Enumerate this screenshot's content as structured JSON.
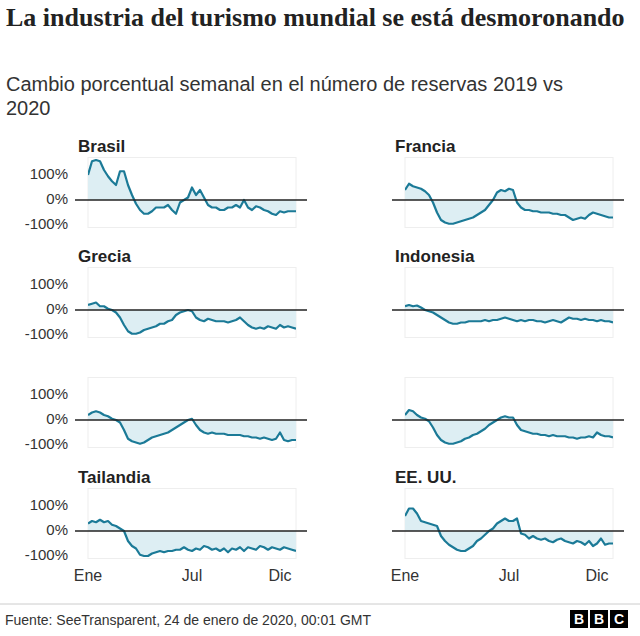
{
  "title": "La industria del turismo mundial se está desmoronando",
  "subtitle": "Cambio porcentual semanal en el número de reservas 2019 vs 2020",
  "source": "Fuente: SeeTransparent, 24 de enero de 2020, 00:01 GMT",
  "logo": "BBC",
  "chart_data": [
    {
      "type": "line",
      "title": "Brasil",
      "x": [
        1,
        2,
        3,
        4,
        5,
        6,
        7,
        8,
        9,
        10,
        11,
        12,
        13,
        14,
        15,
        16,
        17,
        18,
        19,
        20,
        21,
        22,
        23,
        24,
        25,
        26,
        27,
        28,
        29,
        30,
        31,
        32,
        33,
        34,
        35,
        36,
        37,
        38,
        39,
        40,
        41,
        42,
        43,
        44,
        45,
        46,
        47,
        48,
        49,
        50,
        51,
        52,
        53
      ],
      "series": [
        {
          "color": "#1b7a97",
          "values": [
            100,
            155,
            160,
            155,
            120,
            95,
            75,
            60,
            115,
            115,
            60,
            20,
            -15,
            -40,
            -55,
            -55,
            -45,
            -30,
            -30,
            -30,
            -20,
            -40,
            -55,
            -10,
            0,
            10,
            50,
            20,
            40,
            10,
            -20,
            -30,
            -30,
            -40,
            -40,
            -30,
            -30,
            -20,
            -30,
            0,
            -30,
            -40,
            -25,
            -30,
            -40,
            -45,
            -55,
            -60,
            -45,
            -50,
            -45,
            -45,
            -45
          ]
        }
      ],
      "xlim": [
        1,
        53
      ],
      "xticks": [
        {
          "value": 1,
          "label": "Ene"
        },
        {
          "value": 27,
          "label": "Jul"
        },
        {
          "value": 49,
          "label": "Dic"
        }
      ],
      "ylim": [
        -110,
        170
      ],
      "yticks": [
        {
          "value": -100,
          "label": "-100%"
        },
        {
          "value": 0,
          "label": "0%"
        },
        {
          "value": 100,
          "label": "100%"
        }
      ],
      "grid": false,
      "tick_labels": "y"
    },
    {
      "type": "line",
      "title": "Francia",
      "x": [
        1,
        2,
        3,
        4,
        5,
        6,
        7,
        8,
        9,
        10,
        11,
        12,
        13,
        14,
        15,
        16,
        17,
        18,
        19,
        20,
        21,
        22,
        23,
        24,
        25,
        26,
        27,
        28,
        29,
        30,
        31,
        32,
        33,
        34,
        35,
        36,
        37,
        38,
        39,
        40,
        41,
        42,
        43,
        44,
        45,
        46,
        47,
        48,
        49,
        50,
        51,
        52,
        53
      ],
      "series": [
        {
          "color": "#1b7a97",
          "values": [
            40,
            65,
            55,
            50,
            45,
            35,
            20,
            -10,
            -50,
            -80,
            -90,
            -95,
            -95,
            -90,
            -85,
            -80,
            -75,
            -70,
            -60,
            -50,
            -40,
            -20,
            0,
            30,
            40,
            35,
            45,
            40,
            -10,
            -30,
            -40,
            -40,
            -45,
            -45,
            -50,
            -50,
            -50,
            -55,
            -55,
            -60,
            -60,
            -70,
            -80,
            -75,
            -70,
            -75,
            -60,
            -50,
            -55,
            -60,
            -65,
            -70,
            -70
          ]
        }
      ],
      "xlim": [
        1,
        53
      ],
      "xticks": [
        {
          "value": 1,
          "label": "Ene"
        },
        {
          "value": 27,
          "label": "Jul"
        },
        {
          "value": 49,
          "label": "Dic"
        }
      ],
      "ylim": [
        -110,
        170
      ],
      "yticks": [
        {
          "value": -100,
          "label": "-100%"
        },
        {
          "value": 0,
          "label": "0%"
        },
        {
          "value": 100,
          "label": "100%"
        }
      ],
      "grid": false,
      "tick_labels": false
    },
    {
      "type": "line",
      "title": "Grecia",
      "x": [
        1,
        2,
        3,
        4,
        5,
        6,
        7,
        8,
        9,
        10,
        11,
        12,
        13,
        14,
        15,
        16,
        17,
        18,
        19,
        20,
        21,
        22,
        23,
        24,
        25,
        26,
        27,
        28,
        29,
        30,
        31,
        32,
        33,
        34,
        35,
        36,
        37,
        38,
        39,
        40,
        41,
        42,
        43,
        44,
        45,
        46,
        47,
        48,
        49,
        50,
        51,
        52,
        53
      ],
      "series": [
        {
          "color": "#1b7a97",
          "values": [
            20,
            25,
            30,
            15,
            15,
            5,
            0,
            -10,
            -30,
            -60,
            -85,
            -95,
            -95,
            -90,
            -80,
            -75,
            -70,
            -65,
            -55,
            -55,
            -45,
            -40,
            -20,
            -10,
            -5,
            0,
            -5,
            -30,
            -40,
            -45,
            -35,
            -40,
            -45,
            -45,
            -45,
            -50,
            -45,
            -40,
            -30,
            -45,
            -60,
            -70,
            -75,
            -70,
            -75,
            -65,
            -70,
            -75,
            -60,
            -70,
            -65,
            -70,
            -75
          ]
        }
      ],
      "xlim": [
        1,
        53
      ],
      "xticks": [
        {
          "value": 1,
          "label": "Ene"
        },
        {
          "value": 27,
          "label": "Jul"
        },
        {
          "value": 49,
          "label": "Dic"
        }
      ],
      "ylim": [
        -110,
        170
      ],
      "yticks": [
        {
          "value": -100,
          "label": "-100%"
        },
        {
          "value": 0,
          "label": "0%"
        },
        {
          "value": 100,
          "label": "100%"
        }
      ],
      "grid": false,
      "tick_labels": "y"
    },
    {
      "type": "line",
      "title": "Indonesia",
      "x": [
        1,
        2,
        3,
        4,
        5,
        6,
        7,
        8,
        9,
        10,
        11,
        12,
        13,
        14,
        15,
        16,
        17,
        18,
        19,
        20,
        21,
        22,
        23,
        24,
        25,
        26,
        27,
        28,
        29,
        30,
        31,
        32,
        33,
        34,
        35,
        36,
        37,
        38,
        39,
        40,
        41,
        42,
        43,
        44,
        45,
        46,
        47,
        48,
        49,
        50,
        51,
        52,
        53
      ],
      "series": [
        {
          "color": "#1b7a97",
          "values": [
            15,
            20,
            15,
            18,
            10,
            0,
            -5,
            -10,
            -20,
            -30,
            -40,
            -50,
            -55,
            -55,
            -50,
            -50,
            -45,
            -45,
            -45,
            -45,
            -40,
            -45,
            -40,
            -40,
            -35,
            -30,
            -35,
            -40,
            -45,
            -40,
            -45,
            -40,
            -40,
            -45,
            -45,
            -50,
            -45,
            -40,
            -45,
            -50,
            -40,
            -30,
            -35,
            -35,
            -40,
            -35,
            -40,
            -40,
            -45,
            -40,
            -45,
            -45,
            -50
          ]
        }
      ],
      "xlim": [
        1,
        53
      ],
      "xticks": [
        {
          "value": 1,
          "label": "Ene"
        },
        {
          "value": 27,
          "label": "Jul"
        },
        {
          "value": 49,
          "label": "Dic"
        }
      ],
      "ylim": [
        -110,
        170
      ],
      "yticks": [
        {
          "value": -100,
          "label": "-100%"
        },
        {
          "value": 0,
          "label": "0%"
        },
        {
          "value": 100,
          "label": "100%"
        }
      ],
      "grid": false,
      "tick_labels": false
    },
    {
      "type": "line",
      "x": [
        1,
        2,
        3,
        4,
        5,
        6,
        7,
        8,
        9,
        10,
        11,
        12,
        13,
        14,
        15,
        16,
        17,
        18,
        19,
        20,
        21,
        22,
        23,
        24,
        25,
        26,
        27,
        28,
        29,
        30,
        31,
        32,
        33,
        34,
        35,
        36,
        37,
        38,
        39,
        40,
        41,
        42,
        43,
        44,
        45,
        46,
        47,
        48,
        49,
        50,
        51,
        52,
        53
      ],
      "series": [
        {
          "color": "#1b7a97",
          "values": [
            20,
            30,
            35,
            30,
            20,
            15,
            5,
            0,
            -10,
            -40,
            -75,
            -85,
            -90,
            -95,
            -90,
            -80,
            -70,
            -65,
            -60,
            -55,
            -50,
            -40,
            -30,
            -20,
            -10,
            0,
            5,
            -20,
            -40,
            -50,
            -55,
            -50,
            -55,
            -55,
            -55,
            -60,
            -60,
            -60,
            -60,
            -65,
            -65,
            -70,
            -70,
            -75,
            -70,
            -75,
            -80,
            -75,
            -50,
            -80,
            -85,
            -80,
            -80
          ]
        }
      ],
      "xlim": [
        1,
        53
      ],
      "xticks": [
        {
          "value": 1,
          "label": "Ene"
        },
        {
          "value": 27,
          "label": "Jul"
        },
        {
          "value": 49,
          "label": "Dic"
        }
      ],
      "ylim": [
        -110,
        170
      ],
      "yticks": [
        {
          "value": -100,
          "label": "-100%"
        },
        {
          "value": 0,
          "label": "0%"
        },
        {
          "value": 100,
          "label": "100%"
        }
      ],
      "grid": false,
      "tick_labels": "y"
    },
    {
      "type": "line",
      "x": [
        1,
        2,
        3,
        4,
        5,
        6,
        7,
        8,
        9,
        10,
        11,
        12,
        13,
        14,
        15,
        16,
        17,
        18,
        19,
        20,
        21,
        22,
        23,
        24,
        25,
        26,
        27,
        28,
        29,
        30,
        31,
        32,
        33,
        34,
        35,
        36,
        37,
        38,
        39,
        40,
        41,
        42,
        43,
        44,
        45,
        46,
        47,
        48,
        49,
        50,
        51,
        52,
        53
      ],
      "series": [
        {
          "color": "#1b7a97",
          "values": [
            20,
            40,
            35,
            20,
            10,
            5,
            -5,
            -30,
            -60,
            -80,
            -90,
            -95,
            -95,
            -90,
            -85,
            -75,
            -70,
            -60,
            -55,
            -45,
            -35,
            -20,
            -10,
            0,
            10,
            15,
            10,
            10,
            -20,
            -40,
            -45,
            -50,
            -55,
            -55,
            -60,
            -60,
            -65,
            -60,
            -65,
            -65,
            -65,
            -70,
            -70,
            -75,
            -70,
            -70,
            -65,
            -70,
            -50,
            -60,
            -65,
            -65,
            -70
          ]
        }
      ],
      "xlim": [
        1,
        53
      ],
      "xticks": [
        {
          "value": 1,
          "label": "Ene"
        },
        {
          "value": 27,
          "label": "Jul"
        },
        {
          "value": 49,
          "label": "Dic"
        }
      ],
      "ylim": [
        -110,
        170
      ],
      "yticks": [
        {
          "value": -100,
          "label": "-100%"
        },
        {
          "value": 0,
          "label": "0%"
        },
        {
          "value": 100,
          "label": "100%"
        }
      ],
      "grid": false,
      "tick_labels": false
    },
    {
      "type": "line",
      "title": "Tailandia",
      "x": [
        1,
        2,
        3,
        4,
        5,
        6,
        7,
        8,
        9,
        10,
        11,
        12,
        13,
        14,
        15,
        16,
        17,
        18,
        19,
        20,
        21,
        22,
        23,
        24,
        25,
        26,
        27,
        28,
        29,
        30,
        31,
        32,
        33,
        34,
        35,
        36,
        37,
        38,
        39,
        40,
        41,
        42,
        43,
        44,
        45,
        46,
        47,
        48,
        49,
        50,
        51,
        52,
        53
      ],
      "series": [
        {
          "color": "#1b7a97",
          "values": [
            30,
            40,
            35,
            45,
            35,
            40,
            25,
            20,
            10,
            0,
            -40,
            -60,
            -70,
            -95,
            -100,
            -100,
            -90,
            -85,
            -80,
            -85,
            -80,
            -80,
            -75,
            -75,
            -65,
            -75,
            -80,
            -70,
            -75,
            -60,
            -65,
            -75,
            -70,
            -80,
            -70,
            -85,
            -70,
            -75,
            -65,
            -80,
            -65,
            -70,
            -75,
            -60,
            -65,
            -75,
            -65,
            -70,
            -75,
            -65,
            -70,
            -75,
            -80
          ]
        }
      ],
      "xlim": [
        1,
        53
      ],
      "xticks": [
        {
          "value": 1,
          "label": "Ene"
        },
        {
          "value": 27,
          "label": "Jul"
        },
        {
          "value": 49,
          "label": "Dic"
        }
      ],
      "ylim": [
        -110,
        170
      ],
      "yticks": [
        {
          "value": -100,
          "label": "-100%"
        },
        {
          "value": 0,
          "label": "0%"
        },
        {
          "value": 100,
          "label": "100%"
        }
      ],
      "grid": false,
      "tick_labels": true
    },
    {
      "type": "line",
      "title": "EE. UU.",
      "x": [
        1,
        2,
        3,
        4,
        5,
        6,
        7,
        8,
        9,
        10,
        11,
        12,
        13,
        14,
        15,
        16,
        17,
        18,
        19,
        20,
        21,
        22,
        23,
        24,
        25,
        26,
        27,
        28,
        29,
        30,
        31,
        32,
        33,
        34,
        35,
        36,
        37,
        38,
        39,
        40,
        41,
        42,
        43,
        44,
        45,
        46,
        47,
        48,
        49,
        50,
        51,
        52,
        53
      ],
      "series": [
        {
          "color": "#1b7a97",
          "values": [
            60,
            90,
            90,
            70,
            40,
            35,
            30,
            25,
            20,
            -20,
            -40,
            -55,
            -65,
            -75,
            -80,
            -80,
            -70,
            -60,
            -40,
            -30,
            -15,
            0,
            10,
            30,
            40,
            50,
            40,
            40,
            50,
            -10,
            -15,
            -30,
            -20,
            -30,
            -35,
            -30,
            -40,
            -45,
            -35,
            -30,
            -40,
            -45,
            -50,
            -40,
            -45,
            -55,
            -40,
            -60,
            -50,
            -30,
            -55,
            -50,
            -50
          ]
        }
      ],
      "xlim": [
        1,
        53
      ],
      "xticks": [
        {
          "value": 1,
          "label": "Ene"
        },
        {
          "value": 27,
          "label": "Jul"
        },
        {
          "value": 49,
          "label": "Dic"
        }
      ],
      "ylim": [
        -110,
        170
      ],
      "yticks": [
        {
          "value": -100,
          "label": "-100%"
        },
        {
          "value": 0,
          "label": "0%"
        },
        {
          "value": 100,
          "label": "100%"
        }
      ],
      "grid": false,
      "tick_labels": "x"
    }
  ]
}
